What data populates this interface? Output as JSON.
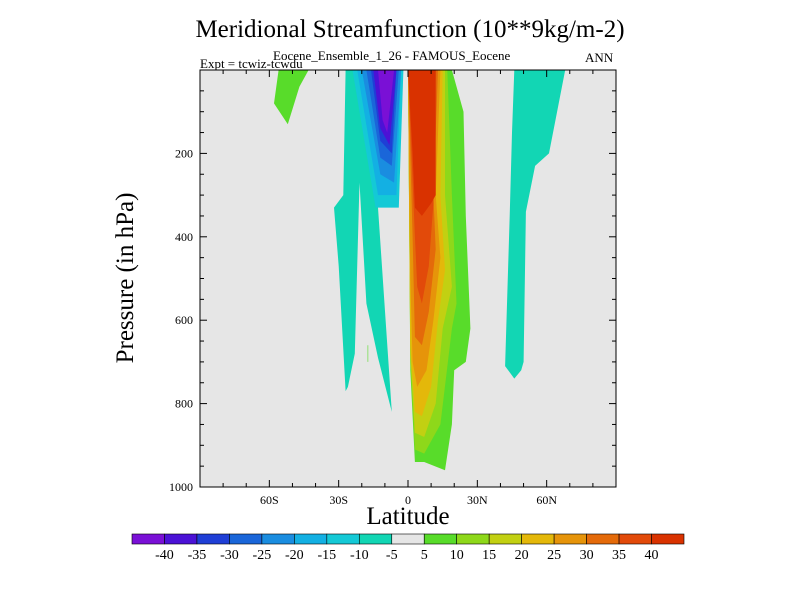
{
  "chart_data": {
    "type": "heatmap",
    "title": "Meridional Streamfunction (10**9kg/m-2)",
    "subtitle": "Eocene_Ensemble_1_26 - FAMOUS_Eocene",
    "experiment_label": "Expt = tcwiz-tcwdu",
    "season": "ANN",
    "xlabel": "Latitude",
    "ylabel": "Pressure (in hPa)",
    "xlim": [
      -90,
      90
    ],
    "ylim": [
      0,
      1000
    ],
    "y_reversed": true,
    "x_ticks": [
      {
        "value": -60,
        "label": "60S"
      },
      {
        "value": -30,
        "label": "30S"
      },
      {
        "value": 0,
        "label": "0"
      },
      {
        "value": 30,
        "label": "30N"
      },
      {
        "value": 60,
        "label": "60N"
      }
    ],
    "y_ticks": [
      {
        "value": 200,
        "label": "200"
      },
      {
        "value": 400,
        "label": "400"
      },
      {
        "value": 600,
        "label": "600"
      },
      {
        "value": 800,
        "label": "800"
      },
      {
        "value": 1000,
        "label": "1000"
      }
    ],
    "background_color": "#e6e6e6",
    "colorbar": {
      "levels": [
        -40,
        -35,
        -30,
        -25,
        -20,
        -15,
        -10,
        -5,
        5,
        10,
        15,
        20,
        25,
        30,
        35,
        40
      ],
      "colors": [
        "#7a10d6",
        "#4b12d6",
        "#1f3fd6",
        "#1a66d9",
        "#1a8de0",
        "#13b0e3",
        "#14c9d6",
        "#12d6b4",
        "#e6e6e6",
        "#58dc2a",
        "#8ed81a",
        "#c2d012",
        "#e4b80a",
        "#e6940a",
        "#e46a0a",
        "#e24a0a",
        "#d93200"
      ]
    },
    "regions": [
      {
        "name": "southern-green-lobe",
        "value": 7,
        "color": "#58dc2a",
        "points": [
          [
            -56,
            0
          ],
          [
            -43,
            0
          ],
          [
            -47,
            40
          ],
          [
            -52,
            130
          ],
          [
            -58,
            80
          ]
        ]
      },
      {
        "name": "southern-teal-column",
        "value": -7,
        "color": "#12d6b4",
        "points": [
          [
            -27,
            0
          ],
          [
            -14,
            0
          ],
          [
            -13,
            330
          ],
          [
            -7,
            820
          ],
          [
            -13,
            690
          ],
          [
            -18,
            560
          ],
          [
            -21,
            270
          ],
          [
            -23,
            680
          ],
          [
            -26,
            760
          ],
          [
            -27,
            770
          ],
          [
            -30,
            470
          ],
          [
            -32,
            330
          ],
          [
            -28,
            300
          ]
        ]
      },
      {
        "name": "southern-cell-c1",
        "value": -12,
        "color": "#14c9d6",
        "points": [
          [
            -24,
            0
          ],
          [
            -2,
            0
          ],
          [
            -4,
            330
          ],
          [
            -14,
            330
          ]
        ]
      },
      {
        "name": "southern-cell-c2",
        "value": -17,
        "color": "#13b0e3",
        "points": [
          [
            -22,
            0
          ],
          [
            -3,
            0
          ],
          [
            -5,
            300
          ],
          [
            -13,
            300
          ]
        ]
      },
      {
        "name": "southern-cell-c3",
        "value": -22,
        "color": "#1a8de0",
        "points": [
          [
            -20,
            0
          ],
          [
            -3,
            0
          ],
          [
            -6,
            270
          ],
          [
            -12,
            250
          ]
        ]
      },
      {
        "name": "southern-cell-c4",
        "value": -27,
        "color": "#1a66d9",
        "points": [
          [
            -18,
            0
          ],
          [
            -4,
            0
          ],
          [
            -7,
            230
          ],
          [
            -12,
            210
          ]
        ]
      },
      {
        "name": "southern-cell-c5",
        "value": -32,
        "color": "#1f3fd6",
        "points": [
          [
            -16,
            0
          ],
          [
            -5,
            0
          ],
          [
            -7,
            200
          ],
          [
            -12,
            170
          ]
        ]
      },
      {
        "name": "southern-cell-c6",
        "value": -37,
        "color": "#4b12d6",
        "points": [
          [
            -15,
            0
          ],
          [
            -5,
            0
          ],
          [
            -8,
            180
          ],
          [
            -12,
            140
          ]
        ]
      },
      {
        "name": "southern-cell-c7",
        "value": -42,
        "color": "#7a10d6",
        "points": [
          [
            -13,
            0
          ],
          [
            -6,
            0
          ],
          [
            -9,
            150
          ],
          [
            -11,
            120
          ]
        ]
      },
      {
        "name": "hadley-green",
        "value": 7,
        "color": "#58dc2a",
        "points": [
          [
            0,
            0
          ],
          [
            19,
            0
          ],
          [
            24,
            100
          ],
          [
            25,
            350
          ],
          [
            27,
            620
          ],
          [
            25,
            700
          ],
          [
            20,
            720
          ],
          [
            19,
            850
          ],
          [
            16,
            960
          ],
          [
            7,
            940
          ],
          [
            3,
            940
          ],
          [
            1,
            720
          ]
        ]
      },
      {
        "name": "hadley-c10",
        "value": 12,
        "color": "#8ed81a",
        "points": [
          [
            0,
            0
          ],
          [
            17,
            0
          ],
          [
            19,
            300
          ],
          [
            21,
            560
          ],
          [
            19,
            620
          ],
          [
            14,
            850
          ],
          [
            7,
            920
          ],
          [
            3,
            910
          ],
          [
            1,
            700
          ]
        ]
      },
      {
        "name": "hadley-c15",
        "value": 17,
        "color": "#c2d012",
        "points": [
          [
            0,
            0
          ],
          [
            16,
            0
          ],
          [
            16,
            300
          ],
          [
            19,
            520
          ],
          [
            15,
            620
          ],
          [
            12,
            800
          ],
          [
            7,
            880
          ],
          [
            3,
            870
          ],
          [
            1,
            680
          ]
        ]
      },
      {
        "name": "hadley-c20",
        "value": 22,
        "color": "#e4b80a",
        "points": [
          [
            0,
            0
          ],
          [
            15,
            0
          ],
          [
            14,
            300
          ],
          [
            16,
            480
          ],
          [
            13,
            600
          ],
          [
            10,
            760
          ],
          [
            6,
            830
          ],
          [
            3,
            820
          ],
          [
            1,
            660
          ]
        ]
      },
      {
        "name": "hadley-c25",
        "value": 27,
        "color": "#e6940a",
        "points": [
          [
            0,
            0
          ],
          [
            14,
            0
          ],
          [
            12,
            300
          ],
          [
            14,
            450
          ],
          [
            11,
            600
          ],
          [
            8,
            720
          ],
          [
            4,
            760
          ],
          [
            2,
            700
          ],
          [
            1,
            500
          ]
        ]
      },
      {
        "name": "hadley-c30",
        "value": 32,
        "color": "#e46a0a",
        "points": [
          [
            0,
            0
          ],
          [
            13,
            0
          ],
          [
            11,
            300
          ],
          [
            12,
            430
          ],
          [
            9,
            580
          ],
          [
            6,
            660
          ],
          [
            3,
            640
          ],
          [
            2,
            400
          ]
        ]
      },
      {
        "name": "hadley-c35",
        "value": 37,
        "color": "#e24a0a",
        "points": [
          [
            0,
            0
          ],
          [
            12,
            0
          ],
          [
            11,
            320
          ],
          [
            9,
            470
          ],
          [
            6,
            560
          ],
          [
            4,
            520
          ],
          [
            3,
            400
          ]
        ]
      },
      {
        "name": "hadley-c40",
        "value": 42,
        "color": "#d93200",
        "points": [
          [
            0,
            0
          ],
          [
            12,
            0
          ],
          [
            12,
            300
          ],
          [
            10,
            320
          ],
          [
            6,
            350
          ],
          [
            3,
            330
          ],
          [
            2,
            200
          ]
        ]
      },
      {
        "name": "northern-teal-column",
        "value": -7,
        "color": "#12d6b4",
        "points": [
          [
            46,
            0
          ],
          [
            68,
            0
          ],
          [
            61,
            200
          ],
          [
            55,
            230
          ],
          [
            51,
            340
          ],
          [
            50,
            700
          ],
          [
            49,
            720
          ],
          [
            46,
            740
          ],
          [
            42,
            710
          ],
          [
            44,
            350
          ],
          [
            45,
            150
          ]
        ]
      },
      {
        "name": "small-green-tick",
        "value": 7,
        "color": "#58dc2a",
        "points": [
          [
            -17.5,
            660
          ],
          [
            -17.2,
            660
          ],
          [
            -17.2,
            700
          ],
          [
            -17.5,
            700
          ]
        ]
      }
    ]
  }
}
